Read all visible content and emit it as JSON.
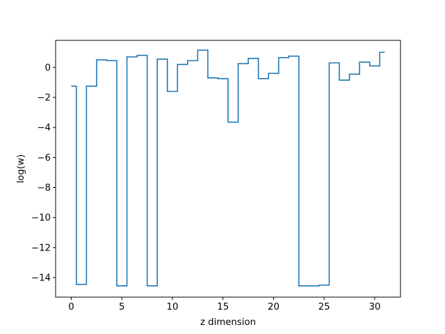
{
  "chart_data": {
    "type": "line",
    "drawstyle": "steps-mid",
    "title": "",
    "xlabel": "z dimension",
    "ylabel": "log(w)",
    "xlim": [
      -1.55,
      32.55
    ],
    "ylim": [
      -15.3,
      1.8
    ],
    "xticks": [
      0,
      5,
      10,
      15,
      20,
      25,
      30
    ],
    "yticks": [
      -14,
      -12,
      -10,
      -8,
      -6,
      -4,
      -2,
      0
    ],
    "grid": false,
    "legend": "none",
    "line_color": "#1f77b4",
    "series": [
      {
        "x": [
          0,
          1,
          2,
          3,
          4,
          5,
          6,
          7,
          8,
          9,
          10,
          11,
          12,
          13,
          14,
          15,
          16,
          17,
          18,
          19,
          20,
          21,
          22,
          23,
          24,
          25,
          26,
          27,
          28,
          29,
          30,
          31
        ],
        "values": [
          -1.25,
          -14.45,
          -1.25,
          0.5,
          0.45,
          -14.55,
          0.7,
          0.8,
          -14.55,
          0.55,
          -1.6,
          0.2,
          0.45,
          1.15,
          -0.7,
          -0.75,
          -3.65,
          0.25,
          0.6,
          -0.75,
          -0.4,
          0.65,
          0.75,
          -14.55,
          -14.55,
          -14.5,
          0.3,
          -0.85,
          -0.45,
          0.35,
          0.1,
          1.0
        ]
      }
    ]
  }
}
